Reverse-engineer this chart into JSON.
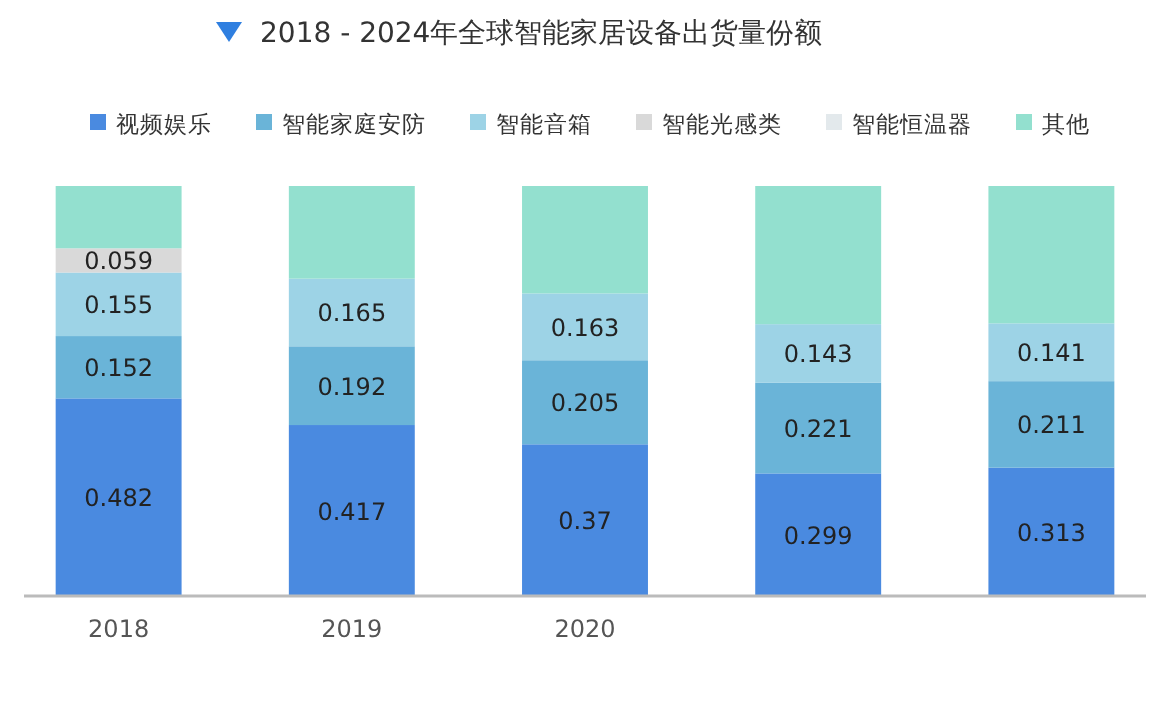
{
  "chart_data": {
    "type": "bar",
    "stacked": true,
    "title": "2018 - 2024年全球智能家居设备出货量份额",
    "legend": "top",
    "categories": [
      "2018",
      "2019",
      "2020",
      null,
      null
    ],
    "series": [
      {
        "name": "视频娱乐",
        "color": "#4a8ae0",
        "values": [
          0.482,
          0.417,
          0.37,
          0.299,
          0.313
        ],
        "value_labels": [
          "0.482",
          "0.417",
          "0.37",
          "0.299",
          "0.313"
        ]
      },
      {
        "name": "智能家庭安防",
        "color": "#6ab4d8",
        "values": [
          0.152,
          0.192,
          0.205,
          0.221,
          0.211
        ],
        "value_labels": [
          "0.152",
          "0.192",
          "0.205",
          "0.221",
          "0.211"
        ]
      },
      {
        "name": "智能音箱",
        "color": "#9dd3e6",
        "values": [
          0.155,
          0.165,
          0.163,
          0.143,
          0.141
        ],
        "value_labels": [
          "0.155",
          "0.165",
          "0.163",
          "0.143",
          "0.141"
        ]
      },
      {
        "name": "智能光感类",
        "color": "#d9d9d9",
        "values": [
          0.059,
          null,
          null,
          null,
          null
        ],
        "value_labels": [
          "0.059",
          null,
          null,
          null,
          null
        ]
      },
      {
        "name": "智能恒温器",
        "color": "#e3e9ec",
        "values": [
          null,
          null,
          null,
          null,
          null
        ]
      },
      {
        "name": "其他",
        "color": "#93e0cf",
        "values": [
          0.152,
          0.226,
          0.262,
          0.337,
          0.335
        ]
      }
    ]
  }
}
